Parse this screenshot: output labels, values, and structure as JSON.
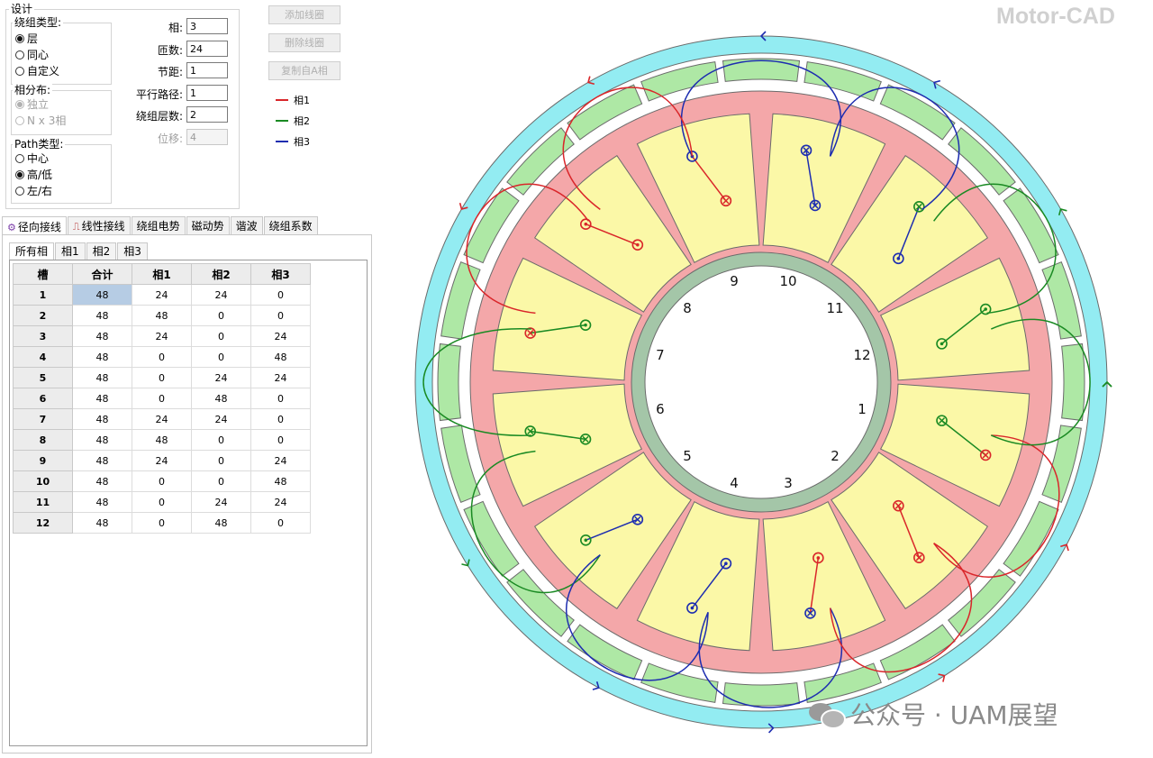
{
  "design": {
    "title": "设计",
    "winding_type": {
      "title": "绕组类型:",
      "options": [
        "层",
        "同心",
        "自定义"
      ],
      "selected": 0
    },
    "phase_dist": {
      "title": "相分布:",
      "options": [
        "独立",
        "N x 3相"
      ],
      "selected": 0
    },
    "path_type": {
      "title": "Path类型:",
      "options": [
        "中心",
        "高/低",
        "左/右"
      ],
      "selected": 1
    },
    "fields": [
      {
        "label": "相:",
        "value": "3",
        "disabled": false
      },
      {
        "label": "匝数:",
        "value": "24",
        "disabled": false
      },
      {
        "label": "节距:",
        "value": "1",
        "disabled": false
      },
      {
        "label": "平行路径:",
        "value": "1",
        "disabled": false
      },
      {
        "label": "绕组层数:",
        "value": "2",
        "disabled": false
      },
      {
        "label": "位移:",
        "value": "4",
        "disabled": true
      }
    ]
  },
  "buttons": {
    "add": "添加线圈",
    "delete": "删除线圈",
    "copy": "复制自A相"
  },
  "legend": [
    {
      "label": "相1",
      "color": "#d9262a"
    },
    {
      "label": "相2",
      "color": "#1a8a23"
    },
    {
      "label": "相3",
      "color": "#1d2db0"
    }
  ],
  "tabs": [
    "径向接线",
    "线性接线",
    "绕组电势",
    "磁动势",
    "谐波",
    "绕组系数"
  ],
  "subtabs": [
    "所有相",
    "相1",
    "相2",
    "相3"
  ],
  "table": {
    "headers": [
      "槽",
      "合计",
      "相1",
      "相2",
      "相3"
    ],
    "rows": [
      [
        "1",
        "48",
        "24",
        "24",
        "0"
      ],
      [
        "2",
        "48",
        "48",
        "0",
        "0"
      ],
      [
        "3",
        "48",
        "24",
        "0",
        "24"
      ],
      [
        "4",
        "48",
        "0",
        "0",
        "48"
      ],
      [
        "5",
        "48",
        "0",
        "24",
        "24"
      ],
      [
        "6",
        "48",
        "0",
        "48",
        "0"
      ],
      [
        "7",
        "48",
        "24",
        "24",
        "0"
      ],
      [
        "8",
        "48",
        "48",
        "0",
        "0"
      ],
      [
        "9",
        "48",
        "24",
        "0",
        "24"
      ],
      [
        "10",
        "48",
        "0",
        "0",
        "48"
      ],
      [
        "11",
        "48",
        "0",
        "24",
        "24"
      ],
      [
        "12",
        "48",
        "0",
        "48",
        "0"
      ]
    ]
  },
  "brand": "Motor-CAD",
  "watermark": "公众号 · UAM展望",
  "slot_numbers": [
    "1",
    "2",
    "3",
    "4",
    "5",
    "6",
    "7",
    "8",
    "9",
    "10",
    "11",
    "12"
  ],
  "colors": {
    "outer_ring": "#93ecf2",
    "green_band": "#aee8a5",
    "stator_core": "#f4a7a9",
    "slot_fill": "#fbf8a7",
    "inner_ring": "#a4c6a8"
  }
}
